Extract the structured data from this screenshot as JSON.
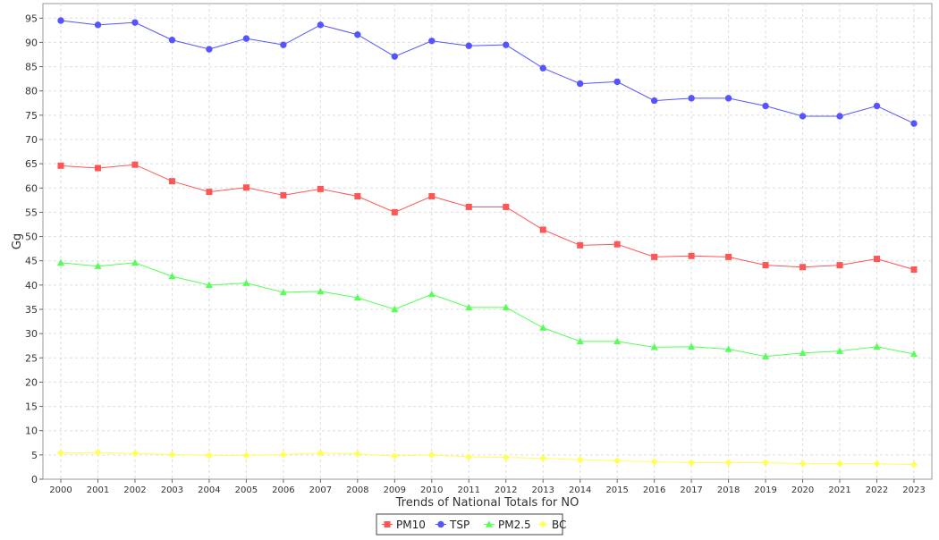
{
  "chart_data": {
    "type": "line",
    "title": "",
    "xlabel": "Trends of National Totals for NO",
    "ylabel": "Gg",
    "ylim": [
      0,
      98
    ],
    "yticks": [
      0,
      5,
      10,
      15,
      20,
      25,
      30,
      35,
      40,
      45,
      50,
      55,
      60,
      65,
      70,
      75,
      80,
      85,
      90,
      95
    ],
    "grid": true,
    "legend_position": "bottom-center",
    "categories": [
      "2000",
      "2001",
      "2002",
      "2003",
      "2004",
      "2005",
      "2006",
      "2007",
      "2008",
      "2009",
      "2010",
      "2011",
      "2012",
      "2013",
      "2014",
      "2015",
      "2016",
      "2017",
      "2018",
      "2019",
      "2020",
      "2021",
      "2022",
      "2023"
    ],
    "series": [
      {
        "name": "PM10",
        "color": "#ff5555",
        "marker": "square",
        "values": [
          64.6,
          64.1,
          64.8,
          61.4,
          59.2,
          60.1,
          58.5,
          59.8,
          58.3,
          55.0,
          58.3,
          56.1,
          56.1,
          51.4,
          48.2,
          48.4,
          45.8,
          46.0,
          45.8,
          44.1,
          43.7,
          44.1,
          45.4,
          43.2
        ]
      },
      {
        "name": "TSP",
        "color": "#5555ff",
        "marker": "circle",
        "values": [
          94.5,
          93.6,
          94.1,
          90.5,
          88.6,
          90.8,
          89.5,
          93.6,
          91.6,
          87.1,
          90.3,
          89.3,
          89.5,
          84.7,
          81.5,
          81.9,
          78.0,
          78.5,
          78.5,
          76.9,
          74.8,
          74.8,
          76.9,
          73.3
        ]
      },
      {
        "name": "PM2.5",
        "color": "#55ff55",
        "marker": "triangle",
        "values": [
          44.6,
          43.9,
          44.6,
          41.8,
          40.0,
          40.4,
          38.5,
          38.7,
          37.4,
          35.0,
          38.1,
          35.4,
          35.4,
          31.2,
          28.4,
          28.4,
          27.2,
          27.3,
          26.8,
          25.3,
          26.0,
          26.4,
          27.3,
          25.8
        ]
      },
      {
        "name": "BC",
        "color": "#ffff55",
        "marker": "diamond",
        "values": [
          5.4,
          5.5,
          5.3,
          5.1,
          4.9,
          4.9,
          5.1,
          5.4,
          5.2,
          4.8,
          5.0,
          4.6,
          4.5,
          4.3,
          4.0,
          3.8,
          3.6,
          3.4,
          3.4,
          3.4,
          3.2,
          3.2,
          3.2,
          3.0
        ]
      }
    ]
  }
}
